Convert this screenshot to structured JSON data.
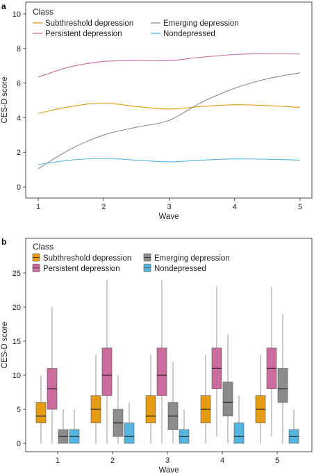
{
  "chart_data": [
    {
      "panel": "a",
      "type": "line",
      "xlabel": "Wave",
      "ylabel": "CES-D score",
      "xlim": [
        1,
        5
      ],
      "ylim": [
        0,
        10
      ],
      "x_ticks": [
        1,
        2,
        3,
        4,
        5
      ],
      "y_ticks": [
        0,
        2,
        4,
        6,
        8,
        10
      ],
      "grid": false,
      "legend_title": "Class",
      "legend_placement": "top-left",
      "series": [
        {
          "name": "Subthreshold depression",
          "color": "#e59b12",
          "x": [
            1,
            1.5,
            2,
            2.5,
            3,
            3.5,
            4,
            4.5,
            5
          ],
          "y": [
            4.25,
            4.65,
            4.85,
            4.65,
            4.5,
            4.65,
            4.75,
            4.7,
            4.6
          ]
        },
        {
          "name": "Emerging depression",
          "color": "#8c8c8c",
          "x": [
            1,
            1.5,
            2,
            2.5,
            3,
            3.5,
            4,
            4.5,
            5
          ],
          "y": [
            1.05,
            2.2,
            3.0,
            3.45,
            3.85,
            4.9,
            5.7,
            6.25,
            6.6
          ]
        },
        {
          "name": "Persistent depression",
          "color": "#cc6b9d",
          "x": [
            1,
            1.5,
            2,
            2.5,
            3,
            3.5,
            4,
            4.5,
            5
          ],
          "y": [
            6.35,
            6.95,
            7.25,
            7.3,
            7.3,
            7.5,
            7.65,
            7.7,
            7.68
          ]
        },
        {
          "name": "Nondepressed",
          "color": "#54b5e1",
          "x": [
            1,
            1.5,
            2,
            2.5,
            3,
            3.5,
            4,
            4.5,
            5
          ],
          "y": [
            1.3,
            1.55,
            1.65,
            1.55,
            1.45,
            1.55,
            1.62,
            1.6,
            1.55
          ]
        }
      ]
    },
    {
      "panel": "b",
      "type": "box",
      "xlabel": "Wave",
      "ylabel": "CES-D score",
      "categories": [
        "1",
        "2",
        "3",
        "4",
        "5"
      ],
      "ylim": [
        -1,
        26
      ],
      "y_ticks": [
        0,
        5,
        10,
        15,
        20,
        25
      ],
      "grid": false,
      "legend_title": "Class",
      "legend_placement": "top-left",
      "series": [
        {
          "name": "Subthreshold depression",
          "color": "#e59b12",
          "boxes": [
            {
              "min": 0,
              "q1": 3,
              "median": 4,
              "q3": 6,
              "max": 10
            },
            {
              "min": 0,
              "q1": 3,
              "median": 5,
              "q3": 7,
              "max": 13
            },
            {
              "min": 0,
              "q1": 3,
              "median": 4,
              "q3": 7,
              "max": 13
            },
            {
              "min": 0,
              "q1": 3,
              "median": 5,
              "q3": 7,
              "max": 13
            },
            {
              "min": 0,
              "q1": 3,
              "median": 5,
              "q3": 7,
              "max": 13
            }
          ]
        },
        {
          "name": "Persistent depression",
          "color": "#cc6b9d",
          "boxes": [
            {
              "min": 0,
              "q1": 5,
              "median": 8,
              "q3": 11,
              "max": 20
            },
            {
              "min": 0,
              "q1": 7,
              "median": 10,
              "q3": 14,
              "max": 24
            },
            {
              "min": 0,
              "q1": 7,
              "median": 10,
              "q3": 14,
              "max": 24
            },
            {
              "min": 1,
              "q1": 8,
              "median": 11,
              "q3": 14,
              "max": 23
            },
            {
              "min": 1,
              "q1": 8,
              "median": 11,
              "q3": 14,
              "max": 23
            }
          ]
        },
        {
          "name": "Emerging depression",
          "color": "#8c8c8c",
          "boxes": [
            {
              "min": 0,
              "q1": 0,
              "median": 1,
              "q3": 2,
              "max": 5
            },
            {
              "min": 0,
              "q1": 1,
              "median": 3,
              "q3": 5,
              "max": 10
            },
            {
              "min": 0,
              "q1": 2,
              "median": 4,
              "q3": 6,
              "max": 12
            },
            {
              "min": 0,
              "q1": 4,
              "median": 6,
              "q3": 9,
              "max": 16
            },
            {
              "min": 0,
              "q1": 6,
              "median": 8,
              "q3": 11,
              "max": 19
            }
          ]
        },
        {
          "name": "Nondepressed",
          "color": "#54b5e1",
          "boxes": [
            {
              "min": 0,
              "q1": 0,
              "median": 1,
              "q3": 2,
              "max": 5
            },
            {
              "min": 0,
              "q1": 0,
              "median": 1,
              "q3": 3,
              "max": 6
            },
            {
              "min": 0,
              "q1": 0,
              "median": 1,
              "q3": 2,
              "max": 5
            },
            {
              "min": 0,
              "q1": 0,
              "median": 1,
              "q3": 3,
              "max": 7
            },
            {
              "min": 0,
              "q1": 0,
              "median": 1,
              "q3": 2,
              "max": 5
            }
          ]
        }
      ]
    }
  ]
}
